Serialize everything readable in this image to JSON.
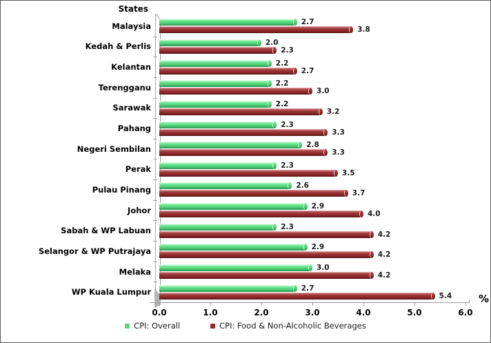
{
  "window": {
    "background": "#ffffff",
    "border_color": "#595959"
  },
  "chart_data": {
    "type": "bar",
    "orientation": "horizontal",
    "axis_title": "States",
    "unit_label": "%",
    "categories": [
      "Malaysia",
      "Kedah & Perlis",
      "Kelantan",
      "Terengganu",
      "Sarawak",
      "Pahang",
      "Negeri Sembilan",
      "Perak",
      "Pulau Pinang",
      "Johor",
      "Sabah & WP Labuan",
      "Selangor & WP Putrajaya",
      "Melaka",
      "WP Kuala Lumpur"
    ],
    "series": [
      {
        "name": "CPI: Overall",
        "color": "#57d97e",
        "values": [
          2.7,
          2.0,
          2.2,
          2.2,
          2.2,
          2.3,
          2.8,
          2.3,
          2.6,
          2.9,
          2.3,
          2.9,
          3.0,
          2.7
        ]
      },
      {
        "name": "CPI: Food & Non-Alcoholic Beverages",
        "color": "#93292b",
        "values": [
          3.8,
          2.3,
          2.7,
          3.0,
          3.2,
          3.3,
          3.3,
          3.5,
          3.7,
          4.0,
          4.2,
          4.2,
          4.2,
          5.4
        ]
      }
    ],
    "xlim": [
      0,
      6
    ],
    "x_ticks": [
      "0.0",
      "1.0",
      "2.0",
      "3.0",
      "4.0",
      "5.0",
      "6.0"
    ],
    "value_labels": true,
    "grid": false,
    "legend_position": "bottom",
    "bar_style": "3d-cylinder",
    "axis_color": "#9c9c9c"
  }
}
